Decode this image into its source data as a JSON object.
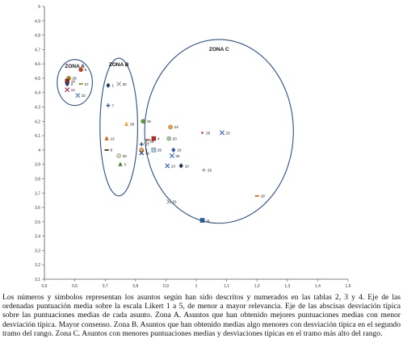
{
  "chart_data": {
    "type": "scatter",
    "title": "",
    "xlabel": "",
    "ylabel": "",
    "xlim": [
      0.5,
      1.5
    ],
    "ylim": [
      3.1,
      5
    ],
    "x_ticks": [
      "0,5",
      "0,6",
      "0,7",
      "0,8",
      "0,9",
      "1",
      "1,1",
      "1,2",
      "1,3",
      "1,4",
      "1,5"
    ],
    "y_ticks": [
      "3,1",
      "3,2",
      "3,3",
      "3,4",
      "3,5",
      "3,6",
      "3,7",
      "3,8",
      "3,9",
      "4",
      "4,1",
      "4,2",
      "4,3",
      "4,4",
      "4,5",
      "4,6",
      "4,7",
      "4,8",
      "4,9",
      "5"
    ],
    "zones": [
      {
        "label": "ZONA A",
        "cx": 0.6,
        "cy": 4.47,
        "rx": 0.058,
        "ry": 0.16
      },
      {
        "label": "ZONA B",
        "cx": 0.745,
        "cy": 4.16,
        "rx": 0.062,
        "ry": 0.48
      },
      {
        "label": "ZONA C",
        "cx": 1.075,
        "cy": 4.13,
        "rx": 0.245,
        "ry": 0.64
      }
    ],
    "points": [
      {
        "id": "6",
        "x": 0.62,
        "y": 4.56,
        "marker": "circle",
        "color": "#c8401e"
      },
      {
        "id": "28",
        "x": 0.58,
        "y": 4.5,
        "marker": "circle",
        "color": "#b8860b"
      },
      {
        "id": "19",
        "x": 0.575,
        "y": 4.48,
        "marker": "square",
        "color": "#8b2e1e"
      },
      {
        "id": "2",
        "x": 0.575,
        "y": 4.46,
        "marker": "diamond",
        "color": "#1f3f78"
      },
      {
        "id": "27",
        "x": 0.62,
        "y": 4.46,
        "marker": "dash",
        "color": "#7a9a3a"
      },
      {
        "id": "14",
        "x": 0.575,
        "y": 4.42,
        "marker": "x",
        "color": "#b0203a"
      },
      {
        "id": "22",
        "x": 0.61,
        "y": 4.38,
        "marker": "x",
        "color": "#4a7ab0"
      },
      {
        "id": "1",
        "x": 0.71,
        "y": 4.45,
        "marker": "diamond",
        "color": "#1f3f78"
      },
      {
        "id": "32",
        "x": 0.745,
        "y": 4.46,
        "marker": "x",
        "color": "#999999"
      },
      {
        "id": "7",
        "x": 0.71,
        "y": 4.31,
        "marker": "plus",
        "color": "#1f3f78"
      },
      {
        "id": "15",
        "x": 0.825,
        "y": 4.2,
        "marker": "circle",
        "color": "#5aa02a"
      },
      {
        "id": "30",
        "x": 0.77,
        "y": 4.18,
        "marker": "triangle",
        "color": "#e8a040"
      },
      {
        "id": "12",
        "x": 0.705,
        "y": 4.08,
        "marker": "triangle",
        "color": "#d06010"
      },
      {
        "id": "8",
        "x": 0.705,
        "y": 4.0,
        "marker": "dash",
        "color": "#5a2a0e"
      },
      {
        "id": "33",
        "x": 0.745,
        "y": 3.96,
        "marker": "circle",
        "color": "#d8d8b0"
      },
      {
        "id": "3",
        "x": 0.75,
        "y": 3.9,
        "marker": "triangle",
        "color": "#4a8020"
      },
      {
        "id": "9",
        "x": 0.84,
        "y": 4.07,
        "marker": "dash",
        "color": "#5a2a0e"
      },
      {
        "id": "16",
        "x": 0.835,
        "y": 4.06,
        "marker": "x",
        "color": "#999999"
      },
      {
        "id": "17",
        "x": 0.82,
        "y": 4.04,
        "marker": "plus",
        "color": "#1f3f78"
      },
      {
        "id": "5",
        "x": 0.82,
        "y": 4.0,
        "marker": "circle",
        "color": "#e8a040"
      },
      {
        "id": "36",
        "x": 0.82,
        "y": 3.98,
        "marker": "x",
        "color": "#1f3f78"
      },
      {
        "id": "4",
        "x": 0.86,
        "y": 4.08,
        "marker": "square",
        "color": "#c82020"
      },
      {
        "id": "29",
        "x": 0.86,
        "y": 4.0,
        "marker": "square",
        "color": "#a0c8e0"
      },
      {
        "id": "24",
        "x": 0.915,
        "y": 4.16,
        "marker": "circle",
        "color": "#e8a040"
      },
      {
        "id": "20",
        "x": 0.91,
        "y": 4.08,
        "marker": "circle",
        "color": "#a0c8a0"
      },
      {
        "id": "19",
        "x": 0.925,
        "y": 4.0,
        "marker": "diamond",
        "color": "#3060a0"
      },
      {
        "id": "34",
        "x": 0.92,
        "y": 3.96,
        "marker": "x",
        "color": "#3060c0"
      },
      {
        "id": "13",
        "x": 0.905,
        "y": 3.89,
        "marker": "x",
        "color": "#3060c0"
      },
      {
        "id": "10",
        "x": 0.95,
        "y": 3.89,
        "marker": "diamond",
        "color": "#1f2f58"
      },
      {
        "id": "26",
        "x": 1.02,
        "y": 4.12,
        "marker": "dot",
        "color": "#e04040"
      },
      {
        "id": "23",
        "x": 1.085,
        "y": 4.12,
        "marker": "x",
        "color": "#3060c0"
      },
      {
        "id": "25",
        "x": 1.025,
        "y": 3.86,
        "marker": "plus",
        "color": "#999999"
      },
      {
        "id": "31",
        "x": 0.91,
        "y": 3.64,
        "marker": "x",
        "color": "#999999"
      },
      {
        "id": "11",
        "x": 1.02,
        "y": 3.51,
        "marker": "square",
        "color": "#2060a0"
      },
      {
        "id": "18",
        "x": 1.2,
        "y": 3.68,
        "marker": "dash",
        "color": "#e07010"
      }
    ]
  },
  "caption": "Los números y símbolos representan los asuntos según han sido descritos y numerados en las tablas 2, 3 y 4. Eje de las ordenadas puntuación media sobre la escala Likert 1 a 5, de menor a mayor relevancia. Eje de las abscisas desviación típica sobre las puntuaciones medias de cada asunto. Zona A. Asuntos que han obtenido mejores puntuaciones medias con menor desviación típica. Mayor consenso. Zona B. Asuntos que han obtenido medias algo menores con desviación típica en el segundo tramo del rango. Zona C. Asuntos con menores puntuaciones medias y desviaciones típicas en el tramo más alto del rango."
}
